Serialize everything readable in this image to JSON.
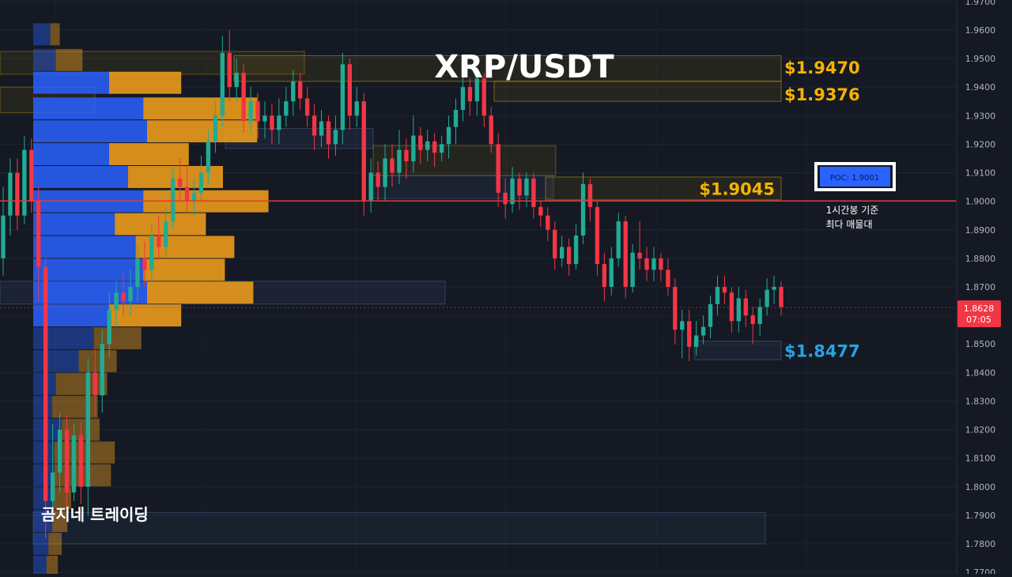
{
  "chart_data": {
    "type": "candlestick",
    "title": "XRP/USDT",
    "watermark": "곰지네 트레이딩",
    "y_ticks": [
      "1.9700",
      "1.9600",
      "1.9500",
      "1.9400",
      "1.9300",
      "1.9200",
      "1.9100",
      "1.9000",
      "1.8900",
      "1.8800",
      "1.8700",
      "1.8600",
      "1.8500",
      "1.8400",
      "1.8300",
      "1.8200",
      "1.8100",
      "1.8000",
      "1.7900",
      "1.7800",
      "1.7700"
    ],
    "ylim": [
      1.7695,
      1.9705
    ],
    "grid": true,
    "current_price": {
      "value": 1.8628,
      "label": "1.8628",
      "countdown": "07:05",
      "color": "#f23645"
    },
    "poc": {
      "value": 1.9001,
      "tag": "POC: 1.9001",
      "note_line1": "1시간봉 기준",
      "note_line2": "최다 매물대",
      "line_color": "#e53935",
      "tag_color": "#2962ff"
    },
    "levels": [
      {
        "value": 1.947,
        "label": "$1.9470",
        "color": "#f5b301"
      },
      {
        "value": 1.9376,
        "label": "$1.9376",
        "color": "#f5b301"
      },
      {
        "value": 1.9045,
        "label": "$1.9045",
        "color": "#f5b301"
      },
      {
        "value": 1.8477,
        "label": "$1.8477",
        "color": "#29a3e0"
      }
    ],
    "colors": {
      "up": "#22ab94",
      "down": "#f23645",
      "buy_volume": "#2962ff",
      "sell_volume": "#f7a21b"
    },
    "volume_profile": [
      {
        "price": 1.9585,
        "buy": 9,
        "sell": 5
      },
      {
        "price": 1.9495,
        "buy": 12,
        "sell": 14
      },
      {
        "price": 1.9415,
        "buy": 40,
        "sell": 38
      },
      {
        "price": 1.9325,
        "buy": 58,
        "sell": 60
      },
      {
        "price": 1.9245,
        "buy": 60,
        "sell": 58
      },
      {
        "price": 1.9165,
        "buy": 40,
        "sell": 42
      },
      {
        "price": 1.9085,
        "buy": 50,
        "sell": 50
      },
      {
        "price": 1.9,
        "buy": 58,
        "sell": 66
      },
      {
        "price": 1.892,
        "buy": 43,
        "sell": 48
      },
      {
        "price": 1.884,
        "buy": 54,
        "sell": 52
      },
      {
        "price": 1.876,
        "buy": 58,
        "sell": 43
      },
      {
        "price": 1.868,
        "buy": 60,
        "sell": 56
      },
      {
        "price": 1.86,
        "buy": 40,
        "sell": 38
      },
      {
        "price": 1.852,
        "buy": 32,
        "sell": 25
      },
      {
        "price": 1.844,
        "buy": 24,
        "sell": 20
      },
      {
        "price": 1.836,
        "buy": 12,
        "sell": 27
      },
      {
        "price": 1.828,
        "buy": 10,
        "sell": 24
      },
      {
        "price": 1.82,
        "buy": 15,
        "sell": 20
      },
      {
        "price": 1.812,
        "buy": 11,
        "sell": 32
      },
      {
        "price": 1.804,
        "buy": 11,
        "sell": 30
      },
      {
        "price": 1.796,
        "buy": 10,
        "sell": 10
      },
      {
        "price": 1.788,
        "buy": 10,
        "sell": 8
      },
      {
        "price": 1.78,
        "buy": 8,
        "sell": 7
      },
      {
        "price": 1.772,
        "buy": 7,
        "sell": 6
      }
    ],
    "candles": [
      [
        1.88,
        1.895,
        1.905,
        1.874
      ],
      [
        1.895,
        1.91,
        1.915,
        1.888
      ],
      [
        1.91,
        1.895,
        1.915,
        1.89
      ],
      [
        1.895,
        1.918,
        1.923,
        1.892
      ],
      [
        1.918,
        1.9,
        1.922,
        1.896
      ],
      [
        1.9,
        1.877,
        1.905,
        1.865
      ],
      [
        1.877,
        1.795,
        1.88,
        1.782
      ],
      [
        1.795,
        1.805,
        1.822,
        1.79
      ],
      [
        1.805,
        1.82,
        1.826,
        1.798
      ],
      [
        1.82,
        1.798,
        1.825,
        1.792
      ],
      [
        1.798,
        1.818,
        1.822,
        1.795
      ],
      [
        1.818,
        1.8,
        1.823,
        1.794
      ],
      [
        1.8,
        1.84,
        1.845,
        1.79
      ],
      [
        1.84,
        1.832,
        1.848,
        1.825
      ],
      [
        1.832,
        1.85,
        1.855,
        1.826
      ],
      [
        1.85,
        1.862,
        1.868,
        1.845
      ],
      [
        1.862,
        1.868,
        1.872,
        1.856
      ],
      [
        1.868,
        1.865,
        1.875,
        1.86
      ],
      [
        1.865,
        1.87,
        1.876,
        1.86
      ],
      [
        1.87,
        1.88,
        1.885,
        1.865
      ],
      [
        1.88,
        1.876,
        1.886,
        1.87
      ],
      [
        1.876,
        1.888,
        1.892,
        1.872
      ],
      [
        1.888,
        1.884,
        1.895,
        1.88
      ],
      [
        1.884,
        1.893,
        1.898,
        1.88
      ],
      [
        1.893,
        1.908,
        1.912,
        1.89
      ],
      [
        1.908,
        1.905,
        1.915,
        1.9
      ],
      [
        1.905,
        1.9,
        1.912,
        1.896
      ],
      [
        1.9,
        1.903,
        1.908,
        1.895
      ],
      [
        1.903,
        1.91,
        1.916,
        1.9
      ],
      [
        1.91,
        1.921,
        1.925,
        1.906
      ],
      [
        1.921,
        1.93,
        1.935,
        1.917
      ],
      [
        1.93,
        1.952,
        1.958,
        1.926
      ],
      [
        1.952,
        1.94,
        1.96,
        1.935
      ],
      [
        1.94,
        1.945,
        1.95,
        1.935
      ],
      [
        1.945,
        1.928,
        1.948,
        1.924
      ],
      [
        1.928,
        1.935,
        1.94,
        1.924
      ],
      [
        1.935,
        1.928,
        1.938,
        1.922
      ],
      [
        1.928,
        1.93,
        1.935,
        1.922
      ],
      [
        1.93,
        1.925,
        1.934,
        1.92
      ],
      [
        1.925,
        1.93,
        1.936,
        1.92
      ],
      [
        1.93,
        1.935,
        1.94,
        1.926
      ],
      [
        1.935,
        1.942,
        1.946,
        1.93
      ],
      [
        1.942,
        1.936,
        1.945,
        1.932
      ],
      [
        1.936,
        1.93,
        1.94,
        1.926
      ],
      [
        1.93,
        1.923,
        1.934,
        1.918
      ],
      [
        1.923,
        1.928,
        1.932,
        1.919
      ],
      [
        1.928,
        1.92,
        1.93,
        1.915
      ],
      [
        1.92,
        1.925,
        1.93,
        1.916
      ],
      [
        1.925,
        1.948,
        1.952,
        1.92
      ],
      [
        1.948,
        1.93,
        1.95,
        1.925
      ],
      [
        1.93,
        1.935,
        1.94,
        1.926
      ],
      [
        1.935,
        1.9,
        1.938,
        1.895
      ],
      [
        1.9,
        1.91,
        1.915,
        1.896
      ],
      [
        1.91,
        1.905,
        1.914,
        1.9
      ],
      [
        1.905,
        1.915,
        1.92,
        1.9
      ],
      [
        1.915,
        1.91,
        1.92,
        1.905
      ],
      [
        1.91,
        1.918,
        1.925,
        1.906
      ],
      [
        1.918,
        1.914,
        1.922,
        1.908
      ],
      [
        1.914,
        1.923,
        1.93,
        1.91
      ],
      [
        1.923,
        1.918,
        1.926,
        1.913
      ],
      [
        1.918,
        1.921,
        1.925,
        1.914
      ],
      [
        1.921,
        1.917,
        1.924,
        1.912
      ],
      [
        1.917,
        1.92,
        1.923,
        1.914
      ],
      [
        1.92,
        1.926,
        1.93,
        1.915
      ],
      [
        1.926,
        1.932,
        1.936,
        1.92
      ],
      [
        1.932,
        1.94,
        1.945,
        1.928
      ],
      [
        1.94,
        1.935,
        1.943,
        1.93
      ],
      [
        1.935,
        1.943,
        1.946,
        1.93
      ],
      [
        1.943,
        1.93,
        1.945,
        1.926
      ],
      [
        1.93,
        1.92,
        1.933,
        1.917
      ],
      [
        1.92,
        1.903,
        1.924,
        1.898
      ],
      [
        1.903,
        1.899,
        1.908,
        1.894
      ],
      [
        1.899,
        1.908,
        1.912,
        1.896
      ],
      [
        1.908,
        1.902,
        1.91,
        1.897
      ],
      [
        1.902,
        1.908,
        1.91,
        1.898
      ],
      [
        1.908,
        1.898,
        1.91,
        1.894
      ],
      [
        1.898,
        1.895,
        1.9,
        1.891
      ],
      [
        1.895,
        1.89,
        1.898,
        1.886
      ],
      [
        1.89,
        1.88,
        1.893,
        1.876
      ],
      [
        1.88,
        1.884,
        1.888,
        1.877
      ],
      [
        1.884,
        1.878,
        1.887,
        1.874
      ],
      [
        1.878,
        1.888,
        1.892,
        1.876
      ],
      [
        1.888,
        1.906,
        1.91,
        1.885
      ],
      [
        1.906,
        1.898,
        1.908,
        1.893
      ],
      [
        1.898,
        1.878,
        1.9,
        1.874
      ],
      [
        1.878,
        1.87,
        1.882,
        1.865
      ],
      [
        1.87,
        1.88,
        1.884,
        1.867
      ],
      [
        1.88,
        1.893,
        1.896,
        1.877
      ],
      [
        1.893,
        1.87,
        1.895,
        1.866
      ],
      [
        1.87,
        1.882,
        1.885,
        1.868
      ],
      [
        1.882,
        1.88,
        1.893,
        1.876
      ],
      [
        1.88,
        1.876,
        1.884,
        1.872
      ],
      [
        1.876,
        1.88,
        1.884,
        1.872
      ],
      [
        1.88,
        1.876,
        1.882,
        1.872
      ],
      [
        1.876,
        1.87,
        1.88,
        1.867
      ],
      [
        1.87,
        1.855,
        1.873,
        1.85
      ],
      [
        1.855,
        1.858,
        1.862,
        1.845
      ],
      [
        1.858,
        1.849,
        1.862,
        1.844
      ],
      [
        1.849,
        1.853,
        1.858,
        1.846
      ],
      [
        1.853,
        1.856,
        1.86,
        1.85
      ],
      [
        1.856,
        1.864,
        1.867,
        1.852
      ],
      [
        1.864,
        1.87,
        1.874,
        1.86
      ],
      [
        1.87,
        1.868,
        1.874,
        1.864
      ],
      [
        1.868,
        1.858,
        1.87,
        1.854
      ],
      [
        1.858,
        1.866,
        1.87,
        1.854
      ],
      [
        1.866,
        1.86,
        1.869,
        1.856
      ],
      [
        1.86,
        1.857,
        1.863,
        1.85
      ],
      [
        1.857,
        1.863,
        1.866,
        1.853
      ],
      [
        1.863,
        1.869,
        1.873,
        1.86
      ],
      [
        1.869,
        1.87,
        1.874,
        1.864
      ],
      [
        1.87,
        1.863,
        1.872,
        1.86
      ]
    ]
  }
}
